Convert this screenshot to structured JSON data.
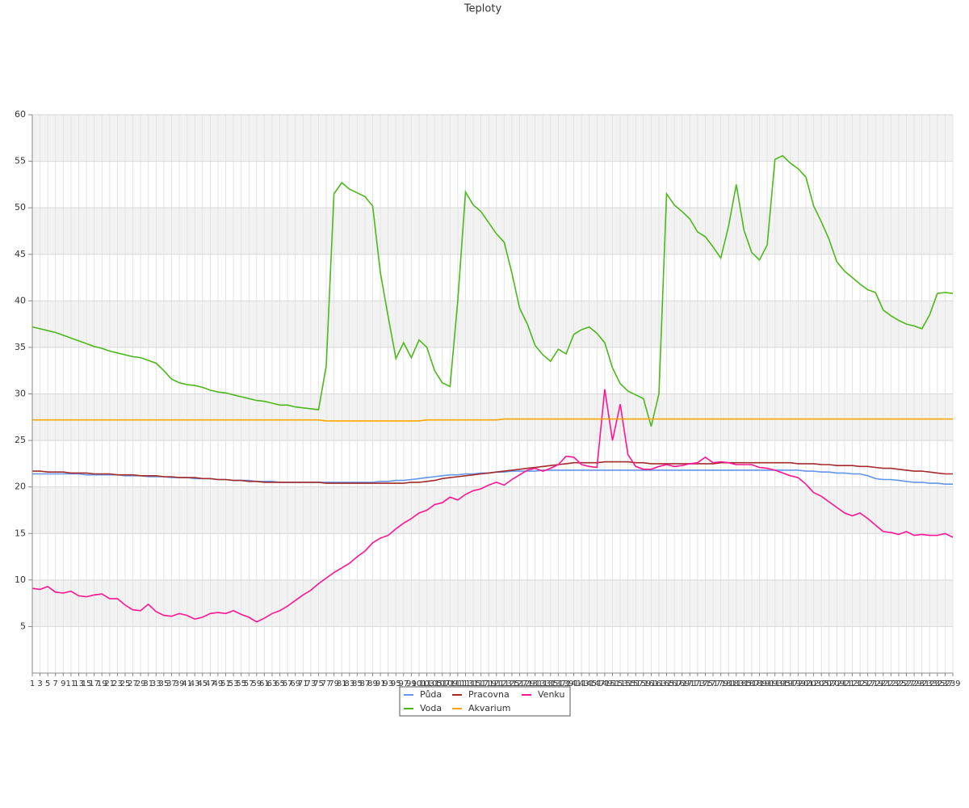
{
  "chart_data": {
    "type": "line",
    "title": "Teploty",
    "categories": [
      "1",
      "3",
      "5",
      "7",
      "9",
      "11",
      "13",
      "15",
      "17",
      "19",
      "21",
      "23",
      "25",
      "27",
      "29",
      "31",
      "33",
      "35",
      "37",
      "39",
      "41",
      "43",
      "45",
      "47",
      "49",
      "51",
      "53",
      "55",
      "57",
      "59",
      "61",
      "63",
      "65",
      "67",
      "69",
      "71",
      "73",
      "75",
      "77",
      "79",
      "81",
      "83",
      "85",
      "87",
      "89",
      "91",
      "93",
      "95",
      "97",
      "99",
      "101",
      "103",
      "105",
      "107",
      "109",
      "111",
      "113",
      "115",
      "117",
      "119",
      "121",
      "123",
      "125",
      "127",
      "129",
      "131",
      "133",
      "135",
      "137",
      "139",
      "141",
      "143",
      "145",
      "147",
      "149",
      "151",
      "153",
      "155",
      "157",
      "159",
      "161",
      "163",
      "165",
      "167",
      "169",
      "171",
      "173",
      "175",
      "177",
      "179",
      "181",
      "183",
      "185",
      "187",
      "189",
      "191",
      "193",
      "195",
      "197",
      "199",
      "201",
      "203",
      "205",
      "207",
      "209",
      "211",
      "213",
      "215",
      "217",
      "219",
      "221",
      "223",
      "225",
      "227",
      "229",
      "231",
      "233",
      "235",
      "237",
      "239"
    ],
    "ylim": [
      0,
      60
    ],
    "yticks": [
      5,
      10,
      15,
      20,
      25,
      30,
      35,
      40,
      45,
      50,
      55,
      60
    ],
    "grid": true,
    "series": [
      {
        "name": "Půda",
        "color": "#6495ed",
        "values": [
          21.4,
          21.4,
          21.4,
          21.4,
          21.4,
          21.4,
          21.4,
          21.3,
          21.3,
          21.3,
          21.3,
          21.3,
          21.2,
          21.2,
          21.2,
          21.1,
          21.1,
          21.1,
          21.0,
          21.0,
          21.0,
          20.9,
          20.9,
          20.9,
          20.8,
          20.8,
          20.7,
          20.7,
          20.7,
          20.6,
          20.6,
          20.6,
          20.5,
          20.5,
          20.5,
          20.5,
          20.5,
          20.5,
          20.5,
          20.5,
          20.5,
          20.5,
          20.5,
          20.5,
          20.5,
          20.6,
          20.6,
          20.7,
          20.7,
          20.8,
          20.9,
          21.0,
          21.1,
          21.2,
          21.3,
          21.3,
          21.4,
          21.4,
          21.5,
          21.5,
          21.6,
          21.6,
          21.7,
          21.7,
          21.7,
          21.7,
          21.8,
          21.8,
          21.8,
          21.8,
          21.8,
          21.8,
          21.8,
          21.8,
          21.8,
          21.8,
          21.8,
          21.8,
          21.8,
          21.8,
          21.8,
          21.8,
          21.8,
          21.8,
          21.8,
          21.8,
          21.8,
          21.8,
          21.8,
          21.8,
          21.8,
          21.8,
          21.8,
          21.8,
          21.8,
          21.8,
          21.8,
          21.8,
          21.8,
          21.8,
          21.7,
          21.7,
          21.6,
          21.6,
          21.5,
          21.5,
          21.4,
          21.4,
          21.2,
          20.9,
          20.8,
          20.8,
          20.7,
          20.6,
          20.5,
          20.5,
          20.4,
          20.4,
          20.3,
          20.3
        ]
      },
      {
        "name": "Pracovna",
        "color": "#a52a2a",
        "values": [
          21.7,
          21.7,
          21.6,
          21.6,
          21.6,
          21.5,
          21.5,
          21.5,
          21.4,
          21.4,
          21.4,
          21.3,
          21.3,
          21.3,
          21.2,
          21.2,
          21.2,
          21.1,
          21.1,
          21.0,
          21.0,
          21.0,
          20.9,
          20.9,
          20.8,
          20.8,
          20.7,
          20.7,
          20.6,
          20.6,
          20.5,
          20.5,
          20.5,
          20.5,
          20.5,
          20.5,
          20.5,
          20.5,
          20.4,
          20.4,
          20.4,
          20.4,
          20.4,
          20.4,
          20.4,
          20.4,
          20.4,
          20.4,
          20.4,
          20.5,
          20.5,
          20.6,
          20.7,
          20.9,
          21.0,
          21.1,
          21.2,
          21.3,
          21.4,
          21.5,
          21.6,
          21.7,
          21.8,
          21.9,
          22.0,
          22.1,
          22.2,
          22.3,
          22.4,
          22.5,
          22.6,
          22.6,
          22.6,
          22.6,
          22.7,
          22.7,
          22.7,
          22.7,
          22.6,
          22.6,
          22.5,
          22.5,
          22.5,
          22.5,
          22.5,
          22.5,
          22.5,
          22.5,
          22.5,
          22.6,
          22.6,
          22.6,
          22.6,
          22.6,
          22.6,
          22.6,
          22.6,
          22.6,
          22.6,
          22.5,
          22.5,
          22.5,
          22.4,
          22.4,
          22.3,
          22.3,
          22.3,
          22.2,
          22.2,
          22.1,
          22.0,
          22.0,
          21.9,
          21.8,
          21.7,
          21.7,
          21.6,
          21.5,
          21.4,
          21.4
        ]
      },
      {
        "name": "Venku",
        "color": "#ff1493",
        "values": [
          9.1,
          9.0,
          9.3,
          8.7,
          8.6,
          8.8,
          8.3,
          8.2,
          8.4,
          8.5,
          8.0,
          8.0,
          7.3,
          6.8,
          6.7,
          7.4,
          6.6,
          6.2,
          6.1,
          6.4,
          6.2,
          5.8,
          6.0,
          6.4,
          6.5,
          6.4,
          6.7,
          6.3,
          6.0,
          5.5,
          5.9,
          6.4,
          6.7,
          7.2,
          7.8,
          8.4,
          8.9,
          9.6,
          10.2,
          10.8,
          11.3,
          11.8,
          12.5,
          13.1,
          14.0,
          14.5,
          14.8,
          15.5,
          16.1,
          16.6,
          17.2,
          17.5,
          18.1,
          18.3,
          18.9,
          18.6,
          19.2,
          19.6,
          19.8,
          20.2,
          20.5,
          20.2,
          20.8,
          21.3,
          21.8,
          22.0,
          21.7,
          22.0,
          22.4,
          23.3,
          23.2,
          22.4,
          22.2,
          22.1,
          30.5,
          25,
          28.9,
          23.5,
          22.2,
          21.9,
          21.9,
          22.2,
          22.4,
          22.2,
          22.3,
          22.5,
          22.6,
          23.2,
          22.6,
          22.7,
          22.6,
          22.4,
          22.4,
          22.4,
          22.1,
          22.0,
          21.8,
          21.5,
          21.2,
          21.0,
          20.3,
          19.4,
          19.0,
          18.4,
          17.8,
          17.2,
          16.9,
          17.2,
          16.6,
          15.9,
          15.2,
          15.1,
          14.9,
          15.2,
          14.8,
          14.9,
          14.8,
          14.8,
          15.0,
          14.6
        ]
      },
      {
        "name": "Voda",
        "color": "#4cb81a",
        "values": [
          37.2,
          37.0,
          36.8,
          36.6,
          36.3,
          36.0,
          35.7,
          35.4,
          35.1,
          34.9,
          34.6,
          34.4,
          34.2,
          34.0,
          33.9,
          33.6,
          33.3,
          32.5,
          31.6,
          31.2,
          31.0,
          30.9,
          30.7,
          30.4,
          30.2,
          30.1,
          29.9,
          29.7,
          29.5,
          29.3,
          29.2,
          29.0,
          28.8,
          28.8,
          28.6,
          28.5,
          28.4,
          28.3,
          33,
          51.5,
          52.7,
          52.0,
          51.6,
          51.2,
          50.2,
          43,
          38.3,
          33.8,
          35.5,
          33.9,
          35.8,
          35.0,
          32.5,
          31.2,
          30.8,
          40,
          51.7,
          50.3,
          49.6,
          48.4,
          47.2,
          46.3,
          43,
          39.2,
          37.5,
          35.2,
          34.2,
          33.5,
          34.8,
          34.3,
          36.4,
          36.9,
          37.2,
          36.5,
          35.5,
          32.8,
          31.1,
          30.3,
          29.9,
          29.5,
          26.5,
          30,
          51.5,
          50.3,
          49.6,
          48.8,
          47.4,
          46.9,
          45.8,
          44.6,
          48,
          52.5,
          47.6,
          45.2,
          44.4,
          46,
          55.2,
          55.6,
          54.8,
          54.2,
          53.3,
          50.2,
          48.5,
          46.6,
          44.2,
          43.2,
          42.5,
          41.8,
          41.2,
          40.9,
          39.0,
          38.4,
          37.9,
          37.5,
          37.3,
          37.0,
          38.5,
          40.8,
          40.9,
          40.8
        ]
      },
      {
        "name": "Akvarium",
        "color": "#ffa500",
        "values": [
          27.2,
          27.2,
          27.2,
          27.2,
          27.2,
          27.2,
          27.2,
          27.2,
          27.2,
          27.2,
          27.2,
          27.2,
          27.2,
          27.2,
          27.2,
          27.2,
          27.2,
          27.2,
          27.2,
          27.2,
          27.2,
          27.2,
          27.2,
          27.2,
          27.2,
          27.2,
          27.2,
          27.2,
          27.2,
          27.2,
          27.2,
          27.2,
          27.2,
          27.2,
          27.2,
          27.2,
          27.2,
          27.2,
          27.1,
          27.1,
          27.1,
          27.1,
          27.1,
          27.1,
          27.1,
          27.1,
          27.1,
          27.1,
          27.1,
          27.1,
          27.1,
          27.2,
          27.2,
          27.2,
          27.2,
          27.2,
          27.2,
          27.2,
          27.2,
          27.2,
          27.2,
          27.3,
          27.3,
          27.3,
          27.3,
          27.3,
          27.3,
          27.3,
          27.3,
          27.3,
          27.3,
          27.3,
          27.3,
          27.3,
          27.3,
          27.3,
          27.3,
          27.3,
          27.3,
          27.3,
          27.3,
          27.3,
          27.3,
          27.3,
          27.3,
          27.3,
          27.3,
          27.3,
          27.3,
          27.3,
          27.3,
          27.3,
          27.3,
          27.3,
          27.3,
          27.3,
          27.3,
          27.3,
          27.3,
          27.3,
          27.3,
          27.3,
          27.3,
          27.3,
          27.3,
          27.3,
          27.3,
          27.3,
          27.3,
          27.3,
          27.3,
          27.3,
          27.3,
          27.3,
          27.3,
          27.3,
          27.3,
          27.3,
          27.3,
          27.3
        ]
      }
    ]
  }
}
